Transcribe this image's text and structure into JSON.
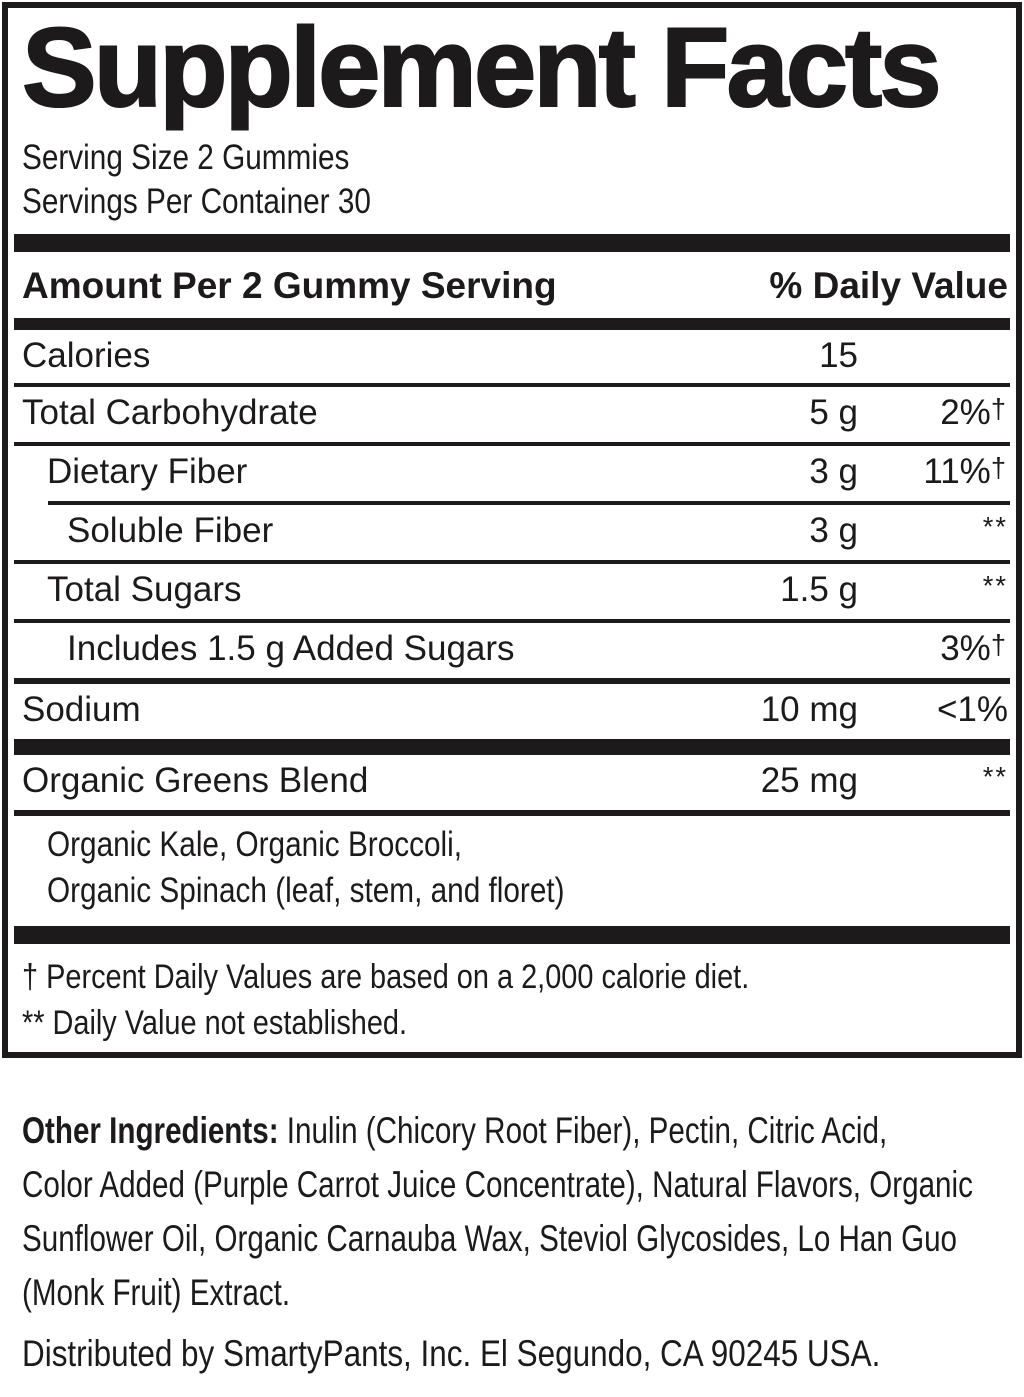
{
  "colors": {
    "ink": "#1c1a1a",
    "paper": "#ffffff"
  },
  "panel": {
    "title": "Supplement Facts",
    "serving_size": "Serving Size 2 Gummies",
    "servings_per_container": "Servings Per Container 30",
    "columns": {
      "amount_header": "Amount Per 2 Gummy Serving",
      "daily_value_header": "% Daily Value"
    },
    "rows": [
      {
        "name": "Calories",
        "amount": "15",
        "dv": "",
        "dv_mark": ""
      },
      {
        "name": "Total Carbohydrate",
        "amount": "5 g",
        "dv": "2%",
        "dv_mark": "†"
      },
      {
        "name": "Dietary Fiber",
        "amount": "3 g",
        "dv": "11%",
        "dv_mark": "†"
      },
      {
        "name": "Soluble Fiber",
        "amount": "3 g",
        "dv": "",
        "dv_mark": "**"
      },
      {
        "name": "Total Sugars",
        "amount": "1.5 g",
        "dv": "",
        "dv_mark": "**"
      },
      {
        "name": "Includes 1.5 g Added Sugars",
        "amount": "",
        "dv": "3%",
        "dv_mark": "†"
      },
      {
        "name": "Sodium",
        "amount": "10 mg",
        "dv": "<1%",
        "dv_mark": ""
      },
      {
        "name": "Organic Greens Blend",
        "amount": "25 mg",
        "dv": "",
        "dv_mark": "**"
      }
    ],
    "blend_ingredients": [
      "Organic Kale, Organic Broccoli,",
      "Organic Spinach (leaf, stem, and floret)"
    ],
    "footnotes": [
      "† Percent Daily Values are based on a 2,000 calorie diet.",
      "** Daily Value not established."
    ]
  },
  "other_ingredients": {
    "label": "Other Ingredients:",
    "lines": [
      " Inulin (Chicory Root Fiber), Pectin, Citric Acid,",
      "Color Added (Purple Carrot Juice Concentrate), Natural Flavors, Organic",
      "Sunflower Oil, Organic Carnauba Wax, Steviol Glycosides, Lo Han Guo",
      "(Monk Fruit) Extract."
    ]
  },
  "distribution": "Distributed by SmartyPants, Inc. El Segundo, CA 90245 USA."
}
